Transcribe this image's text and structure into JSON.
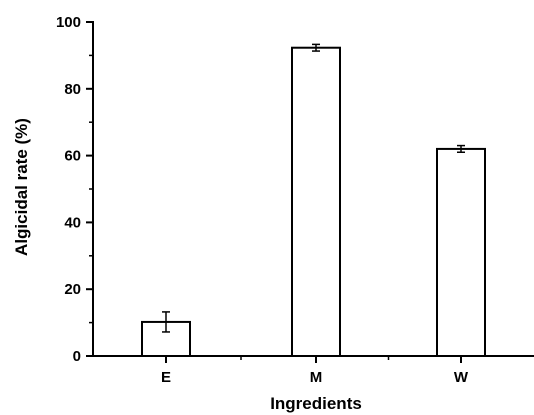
{
  "chart_data": {
    "type": "bar",
    "title": "",
    "xlabel": "Ingredients",
    "ylabel": "Algicidal rate (%)",
    "categories": [
      "E",
      "M",
      "W"
    ],
    "values": [
      10.2,
      92.3,
      62.0
    ],
    "errors": [
      3.0,
      1.0,
      1.0
    ],
    "ylim": [
      0,
      100
    ],
    "yticks": [
      0,
      20,
      40,
      60,
      80,
      100
    ],
    "grid": false,
    "legend": "none",
    "bar_fill": "#ffffff",
    "bar_stroke": "#000000"
  }
}
